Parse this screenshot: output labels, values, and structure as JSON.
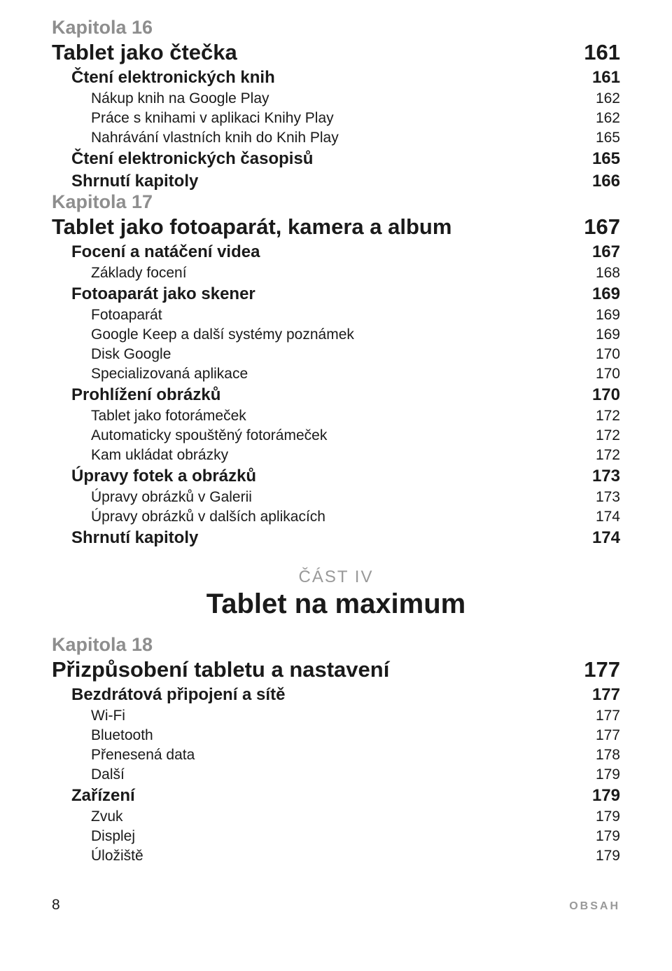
{
  "colors": {
    "text": "#1a1a1a",
    "dim": "#8e8e8e",
    "accent": "#999999",
    "bg": "#ffffff"
  },
  "fonts": {
    "chapLabel": {
      "size": 27,
      "weight": 600
    },
    "chapTitle": {
      "size": 31,
      "weight": 700
    },
    "h1": {
      "size": 24,
      "weight": 700
    },
    "h2": {
      "size": 21,
      "weight": 300
    },
    "partLabel": {
      "size": 24,
      "weight": 400
    },
    "partTitle": {
      "size": 40,
      "weight": 700
    },
    "footerNum": {
      "size": 21,
      "weight": 400
    },
    "footerTxt": {
      "size": 16,
      "weight": 600
    }
  },
  "chapters": [
    {
      "label": "Kapitola 16",
      "title": "Tablet jako čtečka",
      "title_page": "161",
      "items": [
        {
          "level": 1,
          "text": "Čtení elektronických knih",
          "page": "161"
        },
        {
          "level": 2,
          "text": "Nákup knih na Google Play",
          "page": "162"
        },
        {
          "level": 2,
          "text": "Práce s knihami v aplikaci Knihy Play",
          "page": "162"
        },
        {
          "level": 2,
          "text": "Nahrávání vlastních knih do Knih Play",
          "page": "165"
        },
        {
          "level": 1,
          "text": "Čtení elektronických časopisů",
          "page": "165"
        },
        {
          "level": 1,
          "text": "Shrnutí kapitoly",
          "page": "166"
        }
      ]
    },
    {
      "label": "Kapitola 17",
      "title": "Tablet jako fotoaparát, kamera a album",
      "title_page": "167",
      "items": [
        {
          "level": 1,
          "text": "Focení a natáčení videa",
          "page": "167"
        },
        {
          "level": 2,
          "text": "Základy focení",
          "page": "168"
        },
        {
          "level": 1,
          "text": "Fotoaparát jako skener",
          "page": "169"
        },
        {
          "level": 2,
          "text": "Fotoaparát",
          "page": "169"
        },
        {
          "level": 2,
          "text": "Google Keep a další systémy poznámek",
          "page": "169"
        },
        {
          "level": 2,
          "text": "Disk Google",
          "page": "170"
        },
        {
          "level": 2,
          "text": "Specializovaná aplikace",
          "page": "170"
        },
        {
          "level": 1,
          "text": "Prohlížení obrázků",
          "page": "170"
        },
        {
          "level": 2,
          "text": "Tablet jako fotorámeček",
          "page": "172"
        },
        {
          "level": 2,
          "text": "Automaticky spouštěný fotorámeček",
          "page": "172"
        },
        {
          "level": 2,
          "text": "Kam ukládat obrázky",
          "page": "172"
        },
        {
          "level": 1,
          "text": "Úpravy fotek a obrázků",
          "page": "173"
        },
        {
          "level": 2,
          "text": "Úpravy obrázků v Galerii",
          "page": "173"
        },
        {
          "level": 2,
          "text": "Úpravy obrázků v dalších aplikacích",
          "page": "174"
        },
        {
          "level": 1,
          "text": "Shrnutí kapitoly",
          "page": "174"
        }
      ]
    }
  ],
  "part": {
    "label": "ČÁST IV",
    "title": "Tablet na maximum"
  },
  "chapters2": [
    {
      "label": "Kapitola 18",
      "title": "Přizpůsobení tabletu a nastavení",
      "title_page": "177",
      "items": [
        {
          "level": 1,
          "text": "Bezdrátová připojení a sítě",
          "page": "177"
        },
        {
          "level": 2,
          "text": "Wi-Fi",
          "page": "177"
        },
        {
          "level": 2,
          "text": "Bluetooth",
          "page": "177"
        },
        {
          "level": 2,
          "text": "Přenesená data",
          "page": "178"
        },
        {
          "level": 2,
          "text": "Další",
          "page": "179"
        },
        {
          "level": 1,
          "text": "Zařízení",
          "page": "179"
        },
        {
          "level": 2,
          "text": "Zvuk",
          "page": "179"
        },
        {
          "level": 2,
          "text": "Displej",
          "page": "179"
        },
        {
          "level": 2,
          "text": "Úložiště",
          "page": "179"
        }
      ]
    }
  ],
  "footer": {
    "pageNum": "8",
    "label": "OBSAH"
  }
}
